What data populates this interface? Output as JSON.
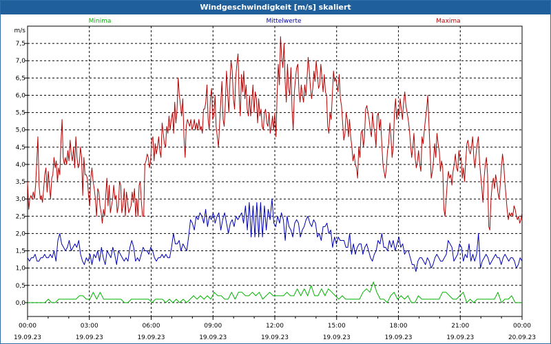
{
  "chart_data": {
    "type": "line",
    "title": "Windgeschwindigkeit [m/s] skaliert",
    "ylabel": "m/s",
    "xlabel": "",
    "ylim": [
      -0.4,
      8.0
    ],
    "xlim": [
      0,
      24
    ],
    "grid": true,
    "y_ticks": [
      "0,0",
      "0,5",
      "1,0",
      "1,5",
      "2,0",
      "2,5",
      "3,0",
      "3,5",
      "4,0",
      "4,5",
      "5,0",
      "5,5",
      "6,0",
      "6,5",
      "7,0",
      "7,5"
    ],
    "x_ticks": [
      {
        "time": "00:00",
        "date": "19.09.23"
      },
      {
        "time": "03:00",
        "date": "19.09.23"
      },
      {
        "time": "06:00",
        "date": "19.09.23"
      },
      {
        "time": "09:00",
        "date": "19.09.23"
      },
      {
        "time": "12:00",
        "date": "19.09.23"
      },
      {
        "time": "15:00",
        "date": "19.09.23"
      },
      {
        "time": "18:00",
        "date": "19.09.23"
      },
      {
        "time": "21:00",
        "date": "19.09.23"
      },
      {
        "time": "00:00",
        "date": "20.09.23"
      }
    ],
    "series": [
      {
        "name": "Minima",
        "color": "#00b400",
        "values": [
          0,
          0,
          0,
          0,
          0,
          0,
          0.1,
          0,
          0,
          0.1,
          0.1,
          0.1,
          0.1,
          0.1,
          0.1,
          0.2,
          0.2,
          0.1,
          0.1,
          0.3,
          0.1,
          0.3,
          0.1,
          0.1,
          0.1,
          0.1,
          0.1,
          0.1,
          0,
          0,
          0.1,
          0.1,
          0.1,
          0.1,
          0.1,
          0.1,
          0,
          0.1,
          0.1,
          0.1,
          0,
          0.1,
          0,
          0.1,
          0,
          0.1,
          0,
          0.1,
          0.2,
          0.1,
          0.2,
          0.1,
          0.2,
          0.1,
          0.3,
          0.2,
          0.2,
          0.1,
          0.1,
          0.3,
          0.1,
          0.3,
          0.3,
          0.2,
          0.2,
          0.3,
          0.2,
          0.3,
          0.1,
          0.2,
          0.3,
          0.2,
          0.2,
          0.2,
          0.2,
          0.3,
          0.2,
          0.2,
          0.4,
          0.2,
          0.4,
          0.2,
          0.5,
          0.2,
          0.2,
          0.4,
          0.2,
          0.4,
          0.3,
          0.2,
          0.1,
          0.2,
          0.1,
          0.1,
          0.1,
          0.1,
          0.1,
          0.3,
          0.4,
          0.3,
          0.6,
          0.3,
          0.1,
          0.1,
          0,
          0.2,
          0.3,
          0.1,
          0.2,
          0.1,
          0.2,
          0,
          0,
          0.2,
          0.1,
          0.1,
          0.1,
          0.1,
          0.1,
          0.1,
          0.3,
          0.3,
          0.2,
          0.1,
          0.1,
          0.2,
          0.3,
          0,
          0.1,
          0,
          0.1,
          0.1,
          0.1,
          0.1,
          0.1,
          0.1,
          0.3,
          0,
          0.1,
          0.1,
          0.2,
          0,
          0,
          0
        ]
      },
      {
        "name": "Mittelwerte",
        "color": "#0000b4",
        "values": [
          1.3,
          1.2,
          1.3,
          1.3,
          1.4,
          1.2,
          1.2,
          1.3,
          1.3,
          1.4,
          1.3,
          1.3,
          1.4,
          1.3,
          1.5,
          1.2,
          1.8,
          2.0,
          1.7,
          1.6,
          1.5,
          1.6,
          1.8,
          1.5,
          1.6,
          1.7,
          1.6,
          1.8,
          1.4,
          1.2,
          1.1,
          1.3,
          1.2,
          1.4,
          1.1,
          1.4,
          1.3,
          1.5,
          1.2,
          1.6,
          1.3,
          1.1,
          1.5,
          1.4,
          1.3,
          1.6,
          1.4,
          1.1,
          1.5,
          1.4,
          1.3,
          1.2,
          1.3,
          1.2,
          1.6,
          1.8,
          1.6,
          1.2,
          1.3,
          1.2,
          1.4,
          1.6,
          1.5,
          1.5,
          1.4,
          1.6,
          1.5,
          1.3,
          1.2,
          1.3,
          1.3,
          1.4,
          1.3,
          1.4,
          1.3,
          1.3,
          1.6,
          2.0,
          1.7,
          1.7,
          1.8,
          1.5,
          1.7,
          1.6,
          1.5,
          1.9,
          2.4,
          2.3,
          2.1,
          2.5,
          2.4,
          2.6,
          2.5,
          2.3,
          2.7,
          2.2,
          2.5,
          2.4,
          2.6,
          2.3,
          2.5,
          2.6,
          2.1,
          2.4,
          2.6,
          2.3,
          2.0,
          2.3,
          2.4,
          2.2,
          2.5,
          2.4,
          2.5,
          2.6,
          2.3,
          2.8,
          2.1,
          2.9,
          1.9,
          2.8,
          1.9,
          2.9,
          1.9,
          2.9,
          1.9,
          2.8,
          2.1,
          2.7,
          2.4,
          3.0,
          2.3,
          2.2,
          2.5,
          2.3,
          2.6,
          2.4,
          1.8,
          2.5,
          2.2,
          2.1,
          1.9,
          2.3,
          2.4,
          2.3,
          1.9,
          2.1,
          2.2,
          2.4,
          2.5,
          2.3,
          2.2,
          2.4,
          2.3,
          1.9,
          2.0,
          1.8,
          2.2,
          2.2,
          2.3,
          2.0,
          2.1,
          1.6,
          1.9,
          1.7,
          1.9,
          1.8,
          1.8,
          1.8,
          1.6,
          1.6,
          2.0,
          1.4,
          1.7,
          1.4,
          1.6,
          1.7,
          1.7,
          1.4,
          1.6,
          1.7,
          1.5,
          1.3,
          1.2,
          1.4,
          1.5,
          1.8,
          1.7,
          2.0,
          1.6,
          1.6,
          1.5,
          1.8,
          1.6,
          1.8,
          1.5,
          1.7,
          1.9,
          1.6,
          1.7,
          1.4,
          1.5,
          1.5,
          1.3,
          1.1,
          1.1,
          0.9,
          1.2,
          1.3,
          1.3,
          1.2,
          1.1,
          1.3,
          1.2,
          1.0,
          1.1,
          1.3,
          1.4,
          1.3,
          1.2,
          1.2,
          1.3,
          1.4,
          1.8,
          1.7,
          1.6,
          1.2,
          1.3,
          1.4,
          1.7,
          1.6,
          1.2,
          1.4,
          1.3,
          1.7,
          1.2,
          1.4,
          1.2,
          1.4,
          2.0,
          1.0,
          1.2,
          1.3,
          1.4,
          1.3,
          1.1,
          1.2,
          1.3,
          1.4,
          1.3,
          1.3,
          1.1,
          1.3,
          1.4,
          1.3,
          1.2,
          1.3,
          1.3,
          1.2,
          1.0,
          1.1,
          1.3,
          1.2
        ]
      },
      {
        "name": "Maxima",
        "color": "#b40000",
        "values": [
          3.5,
          2.7,
          3.0,
          3.1,
          3.0,
          3.2,
          3.0,
          3.4,
          4.1,
          4.8,
          3.4,
          3.0,
          3.1,
          2.9,
          3.3,
          3.7,
          3.9,
          3.2,
          3.8,
          3.4,
          3.0,
          3.6,
          3.7,
          4.2,
          3.9,
          4.1,
          3.5,
          3.9,
          3.7,
          4.6,
          5.3,
          4.2,
          4.0,
          4.2,
          4.0,
          4.4,
          4.1,
          4.7,
          4.3,
          4.1,
          4.5,
          3.9,
          4.8,
          4.2,
          3.9,
          4.0,
          4.5,
          4.2,
          3.1,
          4.2,
          3.7,
          3.7,
          3.6,
          3.1,
          2.8,
          3.6,
          3.9,
          3.5,
          3.3,
          3.0,
          2.5,
          3.3,
          3.2,
          2.8,
          2.6,
          2.3,
          2.7,
          2.5,
          3.1,
          3.6,
          2.8,
          3.4,
          2.6,
          2.8,
          3.0,
          3.4,
          3.0,
          3.1,
          2.6,
          2.8,
          3.5,
          3.4,
          2.6,
          2.8,
          3.3,
          2.5,
          3.2,
          2.9,
          2.6,
          2.7,
          2.8,
          3.2,
          2.9,
          3.3,
          2.5,
          3.0,
          2.5,
          3.4,
          3.5,
          2.9,
          2.5,
          2.5,
          4.0,
          4.1,
          4.3,
          4.2,
          3.9,
          4.1,
          4.7,
          4.8,
          4.1,
          4.6,
          4.3,
          4.5,
          4.8,
          4.4,
          4.2,
          5.2,
          4.9,
          4.6,
          4.5,
          5.1,
          4.9,
          5.4,
          5.0,
          5.3,
          5.5,
          4.9,
          5.8,
          5.2,
          5.6,
          6.5,
          6.0,
          5.7,
          5.4,
          5.9,
          4.8,
          4.2,
          5.1,
          5.3,
          5.2,
          5.1,
          5.3,
          5.0,
          5.1,
          5.3,
          5.0,
          5.2,
          5.0,
          5.3,
          5.0,
          5.1,
          4.9,
          5.6,
          5.6,
          5.8,
          6.3,
          5.3,
          5.0,
          5.9,
          6.2,
          5.3,
          5.4,
          6.0,
          5.1,
          4.8,
          4.5,
          5.2,
          5.8,
          6.4,
          5.3,
          5.1,
          5.8,
          6.7,
          6.1,
          5.5,
          6.4,
          7.0,
          6.7,
          5.9,
          5.6,
          6.5,
          6.9,
          7.2,
          6.0,
          5.4,
          6.6,
          6.1,
          6.7,
          5.9,
          6.3,
          5.6,
          5.4,
          6.0,
          5.4,
          5.8,
          6.3,
          5.5,
          6.1,
          5.9,
          5.2,
          5.9,
          5.4,
          5.6,
          5.1,
          5.0,
          5.5,
          5.6,
          5.2,
          5.1,
          5.5,
          4.9,
          5.1,
          5.4,
          5.0,
          5.5,
          4.8,
          6.0,
          6.9,
          6.3,
          7.7,
          7.1,
          6.8,
          7.5,
          6.4,
          5.8,
          6.9,
          6.2,
          6.0,
          6.8,
          5.6,
          5.0,
          6.1,
          6.5,
          6.8,
          6.9,
          6.1,
          5.8,
          6.3,
          6.0,
          5.8,
          6.3,
          6.0,
          6.5,
          7.1,
          6.7,
          6.2,
          5.9,
          6.2,
          6.7,
          6.4,
          7.0,
          6.6,
          6.2,
          6.3,
          6.9,
          6.5,
          6.1,
          6.6,
          6.1,
          6.0,
          5.1,
          4.9,
          5.5,
          5.3,
          6.0,
          6.7,
          6.4,
          6.5,
          6.3,
          6.1,
          6.6,
          5.9,
          5.7,
          5.2,
          4.7,
          4.9,
          5.5,
          5.3,
          4.8,
          5.3,
          4.8,
          4.5,
          4.1,
          4.3,
          4.0,
          3.9,
          3.6,
          4.5,
          4.2,
          4.9,
          5.0,
          4.5,
          4.8,
          5.6,
          5.7,
          5.5,
          5.3,
          5.0,
          4.8,
          5.5,
          5.1,
          4.9,
          4.5,
          5.4,
          5.5,
          5.0,
          5.3,
          4.6,
          4.0,
          3.8,
          3.6,
          3.9,
          4.4,
          4.6,
          5.2,
          4.8,
          4.2,
          4.5,
          5.5,
          5.9,
          5.3,
          5.6,
          5.4,
          5.9,
          5.6,
          5.3,
          5.8,
          6.1,
          5.7,
          5.5,
          5.3,
          5.0,
          4.6,
          4.2,
          4.5,
          4.9,
          4.2,
          3.9,
          4.1,
          4.4,
          4.0,
          3.8,
          4.8,
          4.6,
          5.0,
          5.3,
          5.6,
          6.0,
          5.2,
          4.4,
          3.6,
          3.8,
          4.1,
          4.6,
          4.2,
          4.9,
          4.6,
          4.4,
          3.8,
          4.1,
          3.9,
          2.7,
          2.5,
          3.0,
          3.5,
          3.8,
          3.6,
          3.7,
          3.4,
          3.8,
          4.0,
          4.3,
          3.9,
          3.8,
          4.4,
          4.1,
          4.2,
          3.6,
          3.9,
          3.5,
          4.1,
          4.6,
          4.7,
          4.4,
          4.3,
          4.5,
          4.8,
          4.2,
          3.9,
          4.3,
          4.6,
          4.8,
          4.1,
          3.7,
          3.3,
          2.9,
          3.6,
          4.0,
          4.2,
          3.7,
          2.2,
          2.1,
          3.0,
          3.4,
          3.6,
          3.3,
          3.7,
          3.5,
          3.2,
          3.0,
          3.4,
          3.9,
          4.3,
          4.0,
          3.5,
          3.1,
          2.7,
          2.4,
          2.6,
          2.5,
          2.6,
          2.5,
          2.8,
          2.7,
          2.5,
          2.4,
          2.5,
          2.3,
          2.4,
          2.6
        ]
      }
    ]
  }
}
